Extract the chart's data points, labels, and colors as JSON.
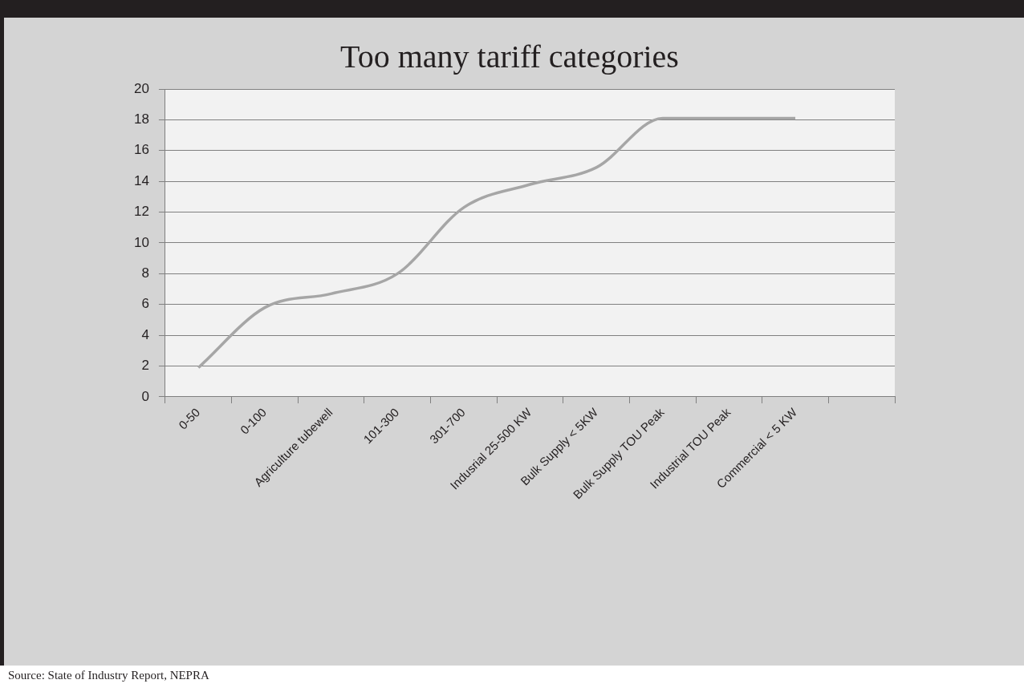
{
  "chart_data": {
    "type": "line",
    "title": "Too many tariff categories",
    "categories": [
      "0-50",
      "0-100",
      "Agriculture tubewell",
      "101-300",
      "301-700",
      "Indusrial 25-500 KW",
      "Bulk Supply < 5KW",
      "Bulk Supply TOU Peak",
      "Industrial TOU Peak",
      "Commercial < 5 KW",
      null
    ],
    "series": [
      {
        "color": "#a6a6a6",
        "values": [
          1.9,
          5.8,
          6.7,
          8.0,
          12.3,
          13.8,
          14.9,
          18.1,
          18.1,
          18.1,
          null
        ]
      }
    ],
    "ylim": [
      0,
      20
    ],
    "yticks": [
      0,
      2,
      4,
      6,
      8,
      10,
      12,
      14,
      16,
      18,
      20
    ],
    "grid": "y",
    "legend": false,
    "marker": "none",
    "line_style": "solid",
    "annotations": [
      "Source: State of Industry Report, NEPRA"
    ]
  }
}
